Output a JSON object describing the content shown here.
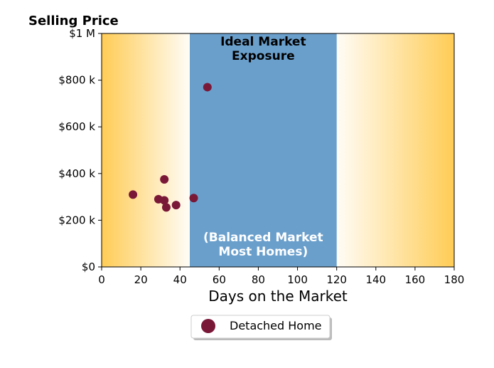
{
  "chart_data": {
    "type": "scatter",
    "title": "Selling Price",
    "xlabel": "Days on the Market",
    "ylabel": "",
    "xlim": [
      0,
      180
    ],
    "ylim": [
      0,
      1000000
    ],
    "x_ticks": [
      {
        "value": 0,
        "label": "0"
      },
      {
        "value": 20,
        "label": "20"
      },
      {
        "value": 40,
        "label": "40"
      },
      {
        "value": 60,
        "label": "60"
      },
      {
        "value": 80,
        "label": "80"
      },
      {
        "value": 100,
        "label": "100"
      },
      {
        "value": 120,
        "label": "120"
      },
      {
        "value": 140,
        "label": "140"
      },
      {
        "value": 160,
        "label": "160"
      },
      {
        "value": 180,
        "label": "180"
      }
    ],
    "y_ticks": [
      {
        "value": 0,
        "label": "$0"
      },
      {
        "value": 200000,
        "label": "$200 k"
      },
      {
        "value": 400000,
        "label": "$400 k"
      },
      {
        "value": 600000,
        "label": "$600 k"
      },
      {
        "value": 800000,
        "label": "$800 k"
      },
      {
        "value": 1000000,
        "label": "$1 M"
      }
    ],
    "grid": false,
    "legend_position": "bottom-center",
    "regions": {
      "ideal": {
        "x_range": [
          45,
          120
        ],
        "color": "#6a9fcc",
        "top_label": [
          "Ideal Market",
          "Exposure"
        ],
        "bottom_label": [
          "(Balanced Market",
          "Most Homes)"
        ]
      },
      "gradient_color": "#ffcc55"
    },
    "series": [
      {
        "name": "Detached Home",
        "color": "#7a1838",
        "points": [
          {
            "x": 16,
            "y": 310000
          },
          {
            "x": 29,
            "y": 290000
          },
          {
            "x": 32,
            "y": 375000
          },
          {
            "x": 32,
            "y": 285000
          },
          {
            "x": 33,
            "y": 255000
          },
          {
            "x": 38,
            "y": 265000
          },
          {
            "x": 47,
            "y": 295000
          },
          {
            "x": 54,
            "y": 770000
          }
        ]
      }
    ]
  }
}
